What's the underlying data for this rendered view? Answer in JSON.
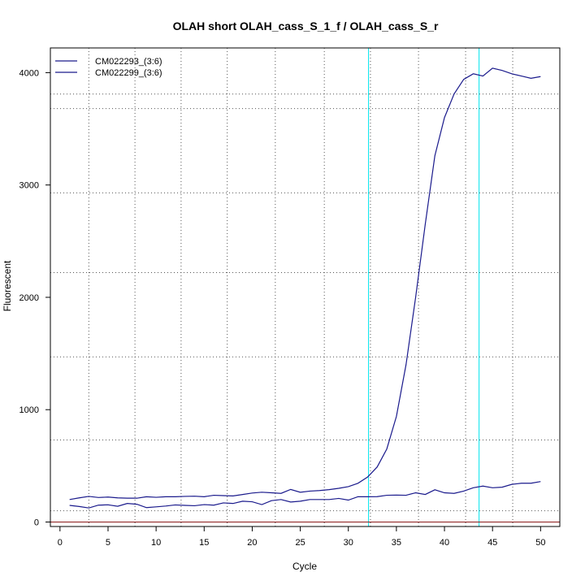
{
  "chart_data": {
    "type": "line",
    "title": "OLAH short OLAH_cass_S_1_f / OLAH_cass_S_r",
    "xlabel": "Cycle",
    "ylabel": "Fluorescent",
    "xlim": [
      -1,
      52
    ],
    "ylim": [
      -40,
      4220
    ],
    "x_ticks": [
      0,
      5,
      10,
      15,
      20,
      25,
      30,
      35,
      40,
      45,
      50
    ],
    "y_ticks": [
      0,
      1000,
      2000,
      3000,
      4000
    ],
    "grid": true,
    "grid_x": [
      3,
      7.8,
      12.6,
      17.4,
      22.4,
      27.5,
      32.3,
      37.3,
      42.2,
      47.1
    ],
    "grid_y": [
      100,
      730,
      1470,
      2220,
      2930,
      3680,
      3810
    ],
    "legend_position": "top-left",
    "threshold_cycles": [
      32.1,
      43.6
    ],
    "threshold_color": "#00e5ee",
    "baseline_color": "#8b1a1a",
    "line_color": "#1a1a8c",
    "x": [
      1,
      2,
      3,
      4,
      5,
      6,
      7,
      8,
      9,
      10,
      11,
      12,
      13,
      14,
      15,
      16,
      17,
      18,
      19,
      20,
      21,
      22,
      23,
      24,
      25,
      26,
      27,
      28,
      29,
      30,
      31,
      32,
      33,
      34,
      35,
      36,
      37,
      38,
      39,
      40,
      41,
      42,
      43,
      44,
      45,
      46,
      47,
      48,
      49,
      50
    ],
    "series": [
      {
        "name": "CM022293_(3:6)",
        "values": [
          148,
          138,
          125,
          150,
          153,
          140,
          165,
          158,
          128,
          135,
          142,
          152,
          148,
          145,
          155,
          150,
          170,
          165,
          185,
          180,
          155,
          190,
          200,
          178,
          185,
          200,
          200,
          200,
          210,
          195,
          225,
          225,
          226,
          238,
          240,
          238,
          260,
          245,
          287,
          260,
          255,
          275,
          305,
          320,
          305,
          310,
          335,
          345,
          345,
          360
        ]
      },
      {
        "name": "CM022299_(3:6)",
        "values": [
          200,
          215,
          228,
          218,
          222,
          215,
          212,
          212,
          225,
          220,
          225,
          225,
          228,
          230,
          225,
          238,
          235,
          232,
          245,
          258,
          265,
          260,
          255,
          290,
          265,
          275,
          280,
          288,
          300,
          315,
          345,
          400,
          490,
          650,
          940,
          1400,
          2000,
          2650,
          3260,
          3600,
          3810,
          3940,
          3990,
          3970,
          4040,
          4020,
          3990,
          3970,
          3950,
          3965
        ]
      }
    ]
  }
}
